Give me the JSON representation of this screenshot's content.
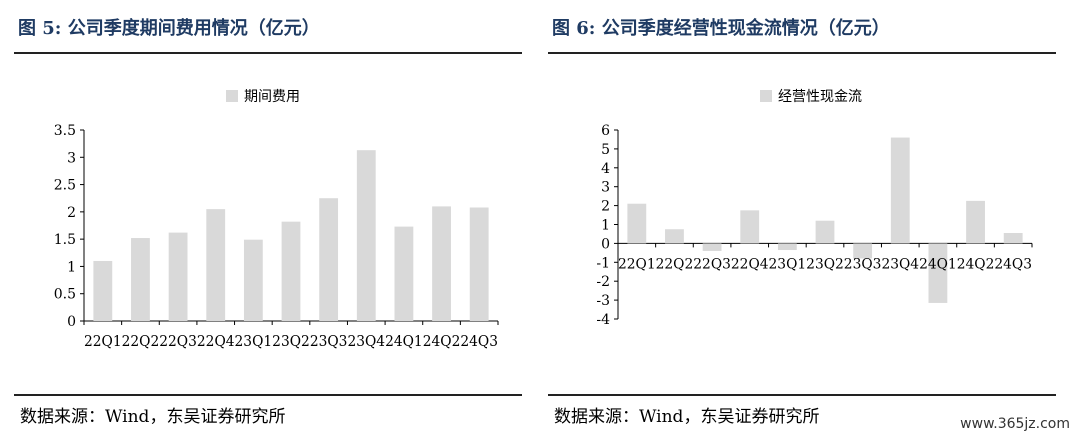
{
  "bar_color": "#d9d9d9",
  "title_color": "#1f3b63",
  "left": {
    "title": "图 5:  公司季度期间费用情况（亿元）",
    "source": "数据来源：Wind，东吴证券研究所"
  },
  "right": {
    "title": "图 6:  公司季度经营性现金流情况（亿元）",
    "source": "数据来源：Wind，东吴证券研究所"
  },
  "watermark": "www.365jz.com",
  "chart_data": [
    {
      "type": "bar",
      "title": "",
      "xlabel": "",
      "ylabel": "",
      "legend": "top-center",
      "grid": false,
      "categories": [
        "22Q1",
        "22Q2",
        "22Q3",
        "22Q4",
        "23Q1",
        "23Q2",
        "23Q3",
        "23Q4",
        "24Q1",
        "24Q2",
        "24Q3"
      ],
      "series": [
        {
          "name": "期间费用",
          "values": [
            1.1,
            1.52,
            1.62,
            2.05,
            1.49,
            1.82,
            2.25,
            3.13,
            1.73,
            2.1,
            2.08
          ]
        }
      ],
      "ylim": [
        0,
        3.5
      ],
      "yticks": [
        "0",
        "0.5",
        "1",
        "1.5",
        "2",
        "2.5",
        "3",
        "3.5"
      ]
    },
    {
      "type": "bar",
      "title": "",
      "xlabel": "",
      "ylabel": "",
      "legend": "top-center",
      "grid": false,
      "categories": [
        "22Q1",
        "22Q2",
        "22Q3",
        "22Q4",
        "23Q1",
        "23Q2",
        "23Q3",
        "23Q4",
        "24Q1",
        "24Q2",
        "24Q3"
      ],
      "series": [
        {
          "name": "经营性现金流",
          "values": [
            2.1,
            0.75,
            -0.4,
            1.75,
            -0.35,
            1.2,
            -0.8,
            5.6,
            -3.15,
            2.25,
            0.55
          ]
        }
      ],
      "ylim": [
        -4,
        6
      ],
      "yticks": [
        "-4",
        "-3",
        "-2",
        "-1",
        "0",
        "1",
        "2",
        "3",
        "4",
        "5",
        "6"
      ]
    }
  ]
}
